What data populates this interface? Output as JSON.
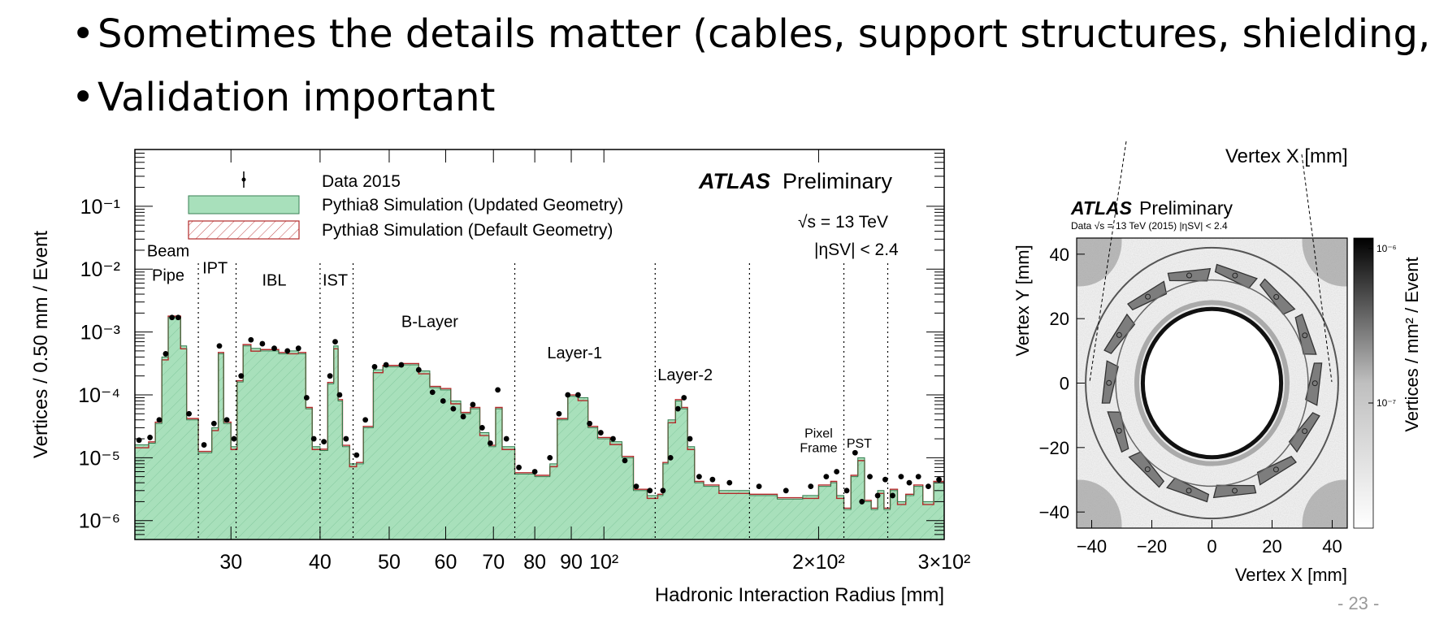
{
  "slide": {
    "bullets": [
      "Sometimes the details matter (cables, support structures, shielding, …)",
      "Validation important"
    ],
    "page_number": "- 23 -"
  },
  "chart_data": [
    {
      "type": "histogram",
      "xlabel": "Hadronic Interaction Radius [mm]",
      "ylabel": "Vertices / 0.50 mm / Event",
      "xscale": "log",
      "yscale": "log",
      "xlim": [
        22,
        300
      ],
      "ylim": [
        5e-07,
        0.8
      ],
      "x_tick_labels": [
        {
          "v": 30,
          "label": "30"
        },
        {
          "v": 40,
          "label": "40"
        },
        {
          "v": 50,
          "label": "50"
        },
        {
          "v": 60,
          "label": "60"
        },
        {
          "v": 70,
          "label": "70"
        },
        {
          "v": 80,
          "label": "80"
        },
        {
          "v": 90,
          "label": "90"
        },
        {
          "v": 100,
          "label": "10²"
        },
        {
          "v": 200,
          "label": "2×10²"
        },
        {
          "v": 300,
          "label": "3×10²"
        }
      ],
      "y_tick_labels": [
        {
          "v": 1e-06,
          "label": "10⁻⁶"
        },
        {
          "v": 1e-05,
          "label": "10⁻⁵"
        },
        {
          "v": 0.0001,
          "label": "10⁻⁴"
        },
        {
          "v": 0.001,
          "label": "10⁻³"
        },
        {
          "v": 0.01,
          "label": "10⁻²"
        },
        {
          "v": 0.1,
          "label": "10⁻¹"
        }
      ],
      "experiment": "ATLAS",
      "experiment_status": "Preliminary",
      "energy_label": "√s = 13 TeV",
      "eta_label": "|ηSV| < 2.4",
      "legend": [
        {
          "label": "Data 2015",
          "style": "marker"
        },
        {
          "label": "Pythia8 Simulation (Updated Geometry)",
          "style": "fill",
          "color": "#a8e0bb",
          "edge": "#5cbf7f"
        },
        {
          "label": "Pythia8 Simulation (Default Geometry)",
          "style": "hatch",
          "color": "#b22a2a"
        }
      ],
      "region_boundaries": [
        27,
        30.5,
        40,
        44.5,
        75,
        118,
        160,
        217,
        250
      ],
      "regions": [
        {
          "label": "Beam",
          "x": 24.5,
          "y": 0.016
        },
        {
          "label": "Pipe",
          "x": 24.5,
          "y": 0.0065
        },
        {
          "label": "IPT",
          "x": 28.5,
          "y": 0.0085
        },
        {
          "label": "IBL",
          "x": 34.5,
          "y": 0.0055
        },
        {
          "label": "IST",
          "x": 42,
          "y": 0.0055
        },
        {
          "label": "B-Layer",
          "x": 57,
          "y": 0.0012
        },
        {
          "label": "Layer-1",
          "x": 91,
          "y": 0.00038
        },
        {
          "label": "Layer-2",
          "x": 130,
          "y": 0.00017
        },
        {
          "label": "Pixel",
          "x": 200,
          "y": 2.1e-05
        },
        {
          "label": "Frame",
          "x": 200,
          "y": 1.23e-05
        },
        {
          "label": "PST",
          "x": 228,
          "y": 1.45e-05
        }
      ],
      "series": [
        {
          "name": "Pythia8 Simulation (Updated Geometry)",
          "x": [
            22,
            23,
            23.5,
            24,
            24.5,
            25,
            25.5,
            26,
            27,
            28.2,
            28.8,
            29.3,
            30,
            30.6,
            31.2,
            32,
            33,
            35,
            36,
            37.3,
            38.2,
            39,
            40,
            41,
            41.8,
            42.4,
            43,
            44,
            45,
            46,
            47.5,
            49,
            52,
            55,
            57,
            59,
            61,
            63,
            65,
            67,
            69,
            70.5,
            72,
            75,
            80,
            84,
            86,
            89,
            92,
            95,
            98,
            102,
            106,
            110,
            115,
            119,
            121,
            123,
            126,
            128.5,
            131,
            134,
            138,
            145,
            160,
            175,
            190,
            200,
            208,
            212,
            217,
            222,
            227,
            232,
            237,
            242,
            247,
            252,
            258,
            265,
            272,
            280,
            290,
            300
          ],
          "y": [
            1.6e-05,
            1.7e-05,
            3.5e-05,
            0.0004,
            0.0017,
            0.0017,
            0.0006,
            4e-05,
            1.2e-05,
            3e-05,
            0.00045,
            3.5e-05,
            1.5e-05,
            0.00016,
            0.0006,
            0.00055,
            0.0005,
            0.00045,
            0.0005,
            0.00045,
            6e-05,
            1.5e-05,
            1.3e-05,
            0.00015,
            0.0006,
            8e-05,
            1.5e-05,
            8e-06,
            8e-06,
            3e-05,
            0.00025,
            0.00028,
            0.0003,
            0.00024,
            0.00013,
            0.00012,
            8e-05,
            5e-05,
            6e-05,
            2.5e-05,
            1.5e-05,
            6e-05,
            1.5e-05,
            5.5e-06,
            5e-06,
            8e-06,
            4e-05,
            9.5e-05,
            9e-05,
            3e-05,
            2e-05,
            1.8e-05,
            1e-05,
            3e-06,
            2.5e-06,
            2.5e-06,
            8e-06,
            4e-05,
            8e-05,
            6e-05,
            1.5e-05,
            4e-06,
            3.5e-06,
            3e-06,
            2.5e-06,
            2.2e-06,
            2.5e-06,
            3.5e-06,
            4e-06,
            2.5e-06,
            1.5e-06,
            5e-06,
            1e-05,
            2e-06,
            1.5e-06,
            3e-06,
            1.5e-06,
            3e-06,
            2e-06,
            2.5e-06,
            3.5e-06,
            2e-06,
            4e-06,
            3e-06
          ]
        },
        {
          "name": "Data 2015",
          "x": [
            22.3,
            23.1,
            23.8,
            24.3,
            24.8,
            25.3,
            26.2,
            27.5,
            28.4,
            28.9,
            29.6,
            30.3,
            31,
            32,
            33.2,
            34.5,
            36,
            37.3,
            38.3,
            39.2,
            40.5,
            41.3,
            42,
            42.6,
            43.5,
            45,
            46.3,
            47.7,
            49.5,
            52,
            55,
            57.5,
            59.5,
            61.5,
            63.5,
            65.5,
            67.5,
            69.3,
            71,
            73,
            76,
            80,
            84,
            86.5,
            89,
            92,
            95.5,
            99,
            103,
            107,
            111,
            116,
            121,
            124,
            127,
            129.5,
            132,
            136,
            142,
            150,
            165,
            180,
            195,
            205,
            212,
            219,
            225,
            230,
            236,
            242,
            248,
            254,
            261,
            268,
            276,
            285,
            295
          ],
          "y": [
            1.9e-05,
            2.1e-05,
            4e-05,
            0.00045,
            0.0017,
            0.0017,
            5e-05,
            1.6e-05,
            3.5e-05,
            0.0006,
            4e-05,
            2e-05,
            0.0002,
            0.00075,
            0.00065,
            0.00055,
            0.0005,
            0.00055,
            9e-05,
            2e-05,
            1.8e-05,
            0.0002,
            0.0007,
            0.0001,
            2e-05,
            1.1e-05,
            4e-05,
            0.00028,
            0.0003,
            0.0003,
            0.00025,
            0.00011,
            8e-05,
            6e-05,
            4.5e-05,
            7e-05,
            3e-05,
            1.7e-05,
            0.00012,
            2e-05,
            7e-06,
            6e-06,
            1e-05,
            5e-05,
            0.0001,
            0.0001,
            3.5e-05,
            2.5e-05,
            2e-05,
            9e-06,
            3.5e-06,
            3e-06,
            3e-06,
            1e-05,
            6e-05,
            9e-05,
            2e-05,
            5e-06,
            4.5e-06,
            4e-06,
            3.5e-06,
            3e-06,
            3.5e-06,
            5e-06,
            6e-06,
            3e-06,
            1.2e-05,
            2e-06,
            5e-06,
            2.5e-06,
            4.5e-06,
            2.5e-06,
            5e-06,
            4e-06,
            5e-06,
            3.5e-06,
            4.5e-06
          ]
        }
      ]
    },
    {
      "type": "heatmap",
      "title": "Vertex X [mm]",
      "experiment": "ATLAS",
      "experiment_status": "Preliminary",
      "subtitle": "Data √s = 13 TeV (2015)  |ηSV| < 2.4",
      "xlabel": "Vertex X [mm]",
      "ylabel": "Vertex Y [mm]",
      "zlabel": "Vertices / mm² / Event",
      "xlim": [
        -45,
        45
      ],
      "ylim": [
        -45,
        45
      ],
      "x_ticks": [
        {
          "v": -40,
          "label": "−40"
        },
        {
          "v": -20,
          "label": "−20"
        },
        {
          "v": 0,
          "label": "0"
        },
        {
          "v": 20,
          "label": "20"
        },
        {
          "v": 40,
          "label": "40"
        }
      ],
      "y_ticks": [
        {
          "v": -40,
          "label": "−40"
        },
        {
          "v": -20,
          "label": "−20"
        },
        {
          "v": 0,
          "label": "0"
        },
        {
          "v": 20,
          "label": "20"
        },
        {
          "v": 40,
          "label": "40"
        }
      ],
      "z_ticks": [
        {
          "v": 1e-06,
          "label": "10⁻⁶"
        },
        {
          "v": 1e-07,
          "label": "10⁻⁷"
        }
      ],
      "colormap": "grayscale",
      "features": {
        "outer_ring_radius": 42,
        "middle_ring_radius": 32,
        "inner_ring_radius": 23,
        "stave_count": 14,
        "stave_radius": 34
      }
    }
  ]
}
